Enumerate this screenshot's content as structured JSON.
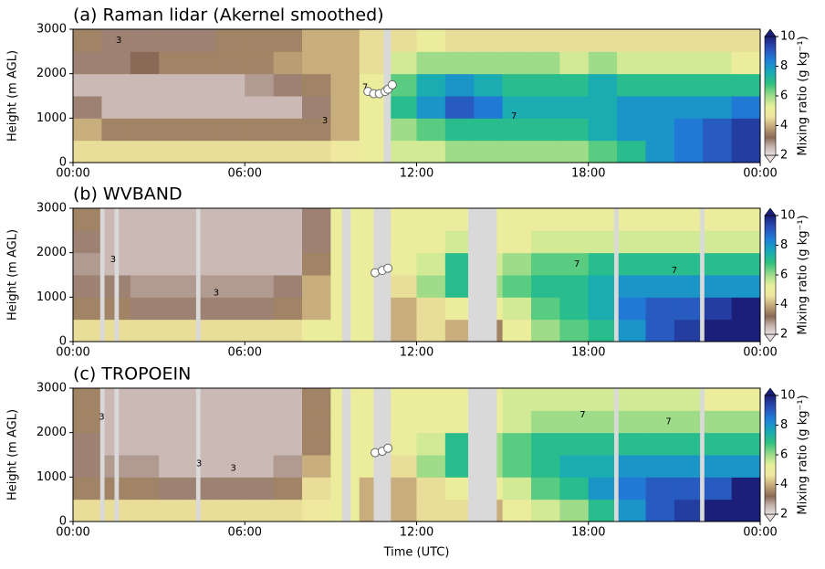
{
  "chart_data": [
    {
      "type": "heatmap",
      "title": "(a) Raman lidar (Akernel smoothed)",
      "ylabel": "Height (m AGL)",
      "colorbar_label": "Mixing ratio (g kg⁻¹)",
      "x": [
        0.5,
        1.5,
        2.5,
        3.5,
        4.5,
        5.5,
        6.5,
        7.5,
        8.5,
        9.5,
        10.5,
        11.5,
        12.5,
        13.5,
        14.5,
        15.5,
        16.5,
        17.5,
        18.5,
        19.5,
        20.5,
        21.5,
        22.5,
        23.5
      ],
      "y": [
        250,
        750,
        1250,
        1750,
        2250,
        2750
      ],
      "values": [
        [
          4.5,
          4.5,
          4.5,
          4.5,
          4.5,
          4.5,
          4.5,
          4.5,
          4.5,
          4.8,
          5,
          5.5,
          5.5,
          6,
          6,
          6,
          6,
          6,
          6.5,
          7,
          8,
          8.5,
          9,
          9.5
        ],
        [
          4,
          3.5,
          3.5,
          3.5,
          3.5,
          3.5,
          3.5,
          3.5,
          3.5,
          4,
          5,
          6,
          6.5,
          7,
          7,
          7,
          7,
          7,
          7.5,
          8,
          8,
          8.5,
          9,
          9.5
        ],
        [
          3,
          2.5,
          2.5,
          2.5,
          2.5,
          2.5,
          2.5,
          2.5,
          3,
          4,
          5,
          7,
          8,
          9,
          8.5,
          7.5,
          7.5,
          7.5,
          7.5,
          8,
          8,
          8,
          8,
          8.5
        ],
        [
          2.5,
          2.5,
          2.5,
          2.5,
          2.5,
          2.5,
          2.8,
          3,
          3.5,
          4,
          5,
          6.5,
          7.5,
          8,
          7.5,
          7,
          7,
          7,
          7.5,
          7,
          7,
          7,
          7,
          7
        ],
        [
          3,
          3,
          3.2,
          3.5,
          3.5,
          3.5,
          3.5,
          3.8,
          4,
          4,
          4.5,
          5.5,
          6,
          6,
          6,
          6,
          6,
          5.5,
          6,
          5.5,
          5.5,
          5.5,
          5.5,
          5
        ],
        [
          3.5,
          3,
          3,
          3,
          3,
          3.5,
          3.5,
          3.5,
          4,
          4,
          4.5,
          4.5,
          5,
          4.5,
          4.5,
          4.5,
          4.5,
          4.5,
          4.5,
          4.5,
          4.5,
          4.5,
          4.5,
          4.5
        ]
      ],
      "gaps": [
        [
          10.85,
          11.1
        ]
      ],
      "gap_color": "#d9d9d9",
      "markers": {
        "x": [
          10.3,
          10.5,
          10.7,
          10.9,
          11.0,
          11.15
        ],
        "y": [
          1600,
          1550,
          1550,
          1600,
          1650,
          1750
        ]
      },
      "contour_labels": [
        {
          "text": "3",
          "x": 1.6,
          "y": 2750
        },
        {
          "text": "3",
          "x": 8.8,
          "y": 950
        },
        {
          "text": "7",
          "x": 10.2,
          "y": 1700
        },
        {
          "text": "7",
          "x": 15.4,
          "y": 1050
        }
      ],
      "xlim": [
        0,
        24
      ],
      "ylim": [
        0,
        3000
      ],
      "xticks": [
        {
          "value": 0,
          "label": "00:00"
        },
        {
          "value": 6,
          "label": "06:00"
        },
        {
          "value": 12,
          "label": "12:00"
        },
        {
          "value": 18,
          "label": "18:00"
        },
        {
          "value": 24,
          "label": "00:00"
        }
      ],
      "yticks": [
        0,
        1000,
        2000,
        3000
      ],
      "clim": [
        2,
        10
      ],
      "cticks": [
        2,
        4,
        6,
        8,
        10
      ]
    },
    {
      "type": "heatmap",
      "title": "(b) WVBAND",
      "ylabel": "Height (m AGL)",
      "colorbar_label": "Mixing ratio (g kg⁻¹)",
      "x": [
        0.5,
        1.5,
        2.5,
        3.5,
        4.5,
        5.5,
        6.5,
        7.5,
        8.5,
        9.5,
        10.5,
        11.5,
        12.5,
        13.5,
        14.5,
        15.5,
        16.5,
        17.5,
        18.5,
        19.5,
        20.5,
        21.5,
        22.5,
        23.5
      ],
      "y": [
        250,
        750,
        1250,
        1750,
        2250,
        2750
      ],
      "values": [
        [
          4.5,
          4.5,
          4.5,
          4.5,
          4.5,
          4.5,
          4.5,
          4.5,
          5,
          5,
          5,
          4,
          4.5,
          4,
          3.5,
          5,
          6,
          6.5,
          7,
          8,
          9,
          9.5,
          10,
          10
        ],
        [
          3.5,
          3.5,
          3,
          3,
          3,
          3,
          3,
          3.5,
          4,
          5,
          5,
          4,
          4.5,
          5,
          5,
          5.5,
          6.5,
          7,
          7.5,
          8.5,
          9,
          9,
          9.5,
          10
        ],
        [
          3,
          3,
          2.8,
          2.8,
          2.8,
          2.8,
          2.8,
          3,
          4,
          5,
          5,
          4.5,
          6,
          7,
          6,
          6.5,
          7,
          7,
          7.5,
          8,
          8,
          8,
          8,
          8
        ],
        [
          2.8,
          2.5,
          2.5,
          2.5,
          2.5,
          2.5,
          2.5,
          2.5,
          3.5,
          5,
          5,
          5,
          5.5,
          7,
          5.5,
          6,
          6.5,
          6.5,
          7,
          7,
          7,
          7,
          7,
          7
        ],
        [
          3,
          2.5,
          2.5,
          2.5,
          2.5,
          2.5,
          2.5,
          2.5,
          3,
          5,
          5,
          5,
          5,
          5.5,
          5,
          5,
          5.5,
          5.5,
          5.5,
          5.5,
          5.5,
          5.5,
          5.5,
          5.5
        ],
        [
          3.5,
          2.5,
          2.5,
          2.5,
          2.5,
          2.5,
          2.5,
          2.5,
          3,
          5,
          5,
          5,
          5,
          5,
          5,
          5,
          5,
          5,
          5,
          5,
          5,
          5,
          5,
          5
        ]
      ],
      "gaps": [
        [
          0.95,
          1.1
        ],
        [
          1.45,
          1.6
        ],
        [
          4.3,
          4.45
        ],
        [
          9.4,
          9.7
        ],
        [
          10.5,
          11.1
        ],
        [
          13.8,
          14.8
        ],
        [
          18.9,
          19.05
        ],
        [
          21.9,
          22.05
        ]
      ],
      "gap_color": "#d9d9d9",
      "markers": {
        "x": [
          10.55,
          10.8,
          11.0
        ],
        "y": [
          1550,
          1600,
          1650
        ]
      },
      "contour_labels": [
        {
          "text": "3",
          "x": 1.4,
          "y": 1850
        },
        {
          "text": "3",
          "x": 5.0,
          "y": 1100
        },
        {
          "text": "7",
          "x": 17.6,
          "y": 1750
        },
        {
          "text": "7",
          "x": 21.0,
          "y": 1600
        }
      ],
      "xlim": [
        0,
        24
      ],
      "ylim": [
        0,
        3000
      ],
      "xticks": [
        {
          "value": 0,
          "label": "00:00"
        },
        {
          "value": 6,
          "label": "06:00"
        },
        {
          "value": 12,
          "label": "12:00"
        },
        {
          "value": 18,
          "label": "18:00"
        },
        {
          "value": 24,
          "label": "00:00"
        }
      ],
      "yticks": [
        0,
        1000,
        2000,
        3000
      ],
      "clim": [
        2,
        10
      ],
      "cticks": [
        2,
        4,
        6,
        8,
        10
      ]
    },
    {
      "type": "heatmap",
      "title": "(c) TROPOEIN",
      "ylabel": "Height (m AGL)",
      "xlabel": "Time (UTC)",
      "colorbar_label": "Mixing ratio (g kg⁻¹)",
      "x": [
        0.5,
        1.5,
        2.5,
        3.5,
        4.5,
        5.5,
        6.5,
        7.5,
        8.5,
        9.5,
        10.5,
        11.5,
        12.5,
        13.5,
        14.5,
        15.5,
        16.5,
        17.5,
        18.5,
        19.5,
        20.5,
        21.5,
        22.5,
        23.5
      ],
      "y": [
        250,
        750,
        1250,
        1750,
        2250,
        2750
      ],
      "values": [
        [
          4.5,
          4.5,
          4.5,
          4.5,
          4.5,
          4.5,
          4.5,
          4.5,
          4.8,
          5,
          4,
          4,
          4.5,
          4.5,
          4,
          5,
          5.5,
          6,
          7,
          8,
          9,
          9.5,
          10,
          10
        ],
        [
          3.5,
          3.5,
          3.5,
          3,
          3,
          3,
          3,
          3.5,
          4.5,
          5,
          4,
          4,
          4.5,
          5,
          5,
          5.5,
          6.5,
          7,
          8,
          8.5,
          9,
          9,
          9,
          10
        ],
        [
          3,
          2.8,
          2.8,
          2.5,
          2.5,
          2.5,
          2.5,
          2.8,
          4,
          5,
          5,
          4.5,
          6,
          7,
          6,
          6.5,
          7,
          7.5,
          7.5,
          8,
          8,
          8,
          8,
          8
        ],
        [
          3,
          2.5,
          2.5,
          2.5,
          2.5,
          2.5,
          2.5,
          2.5,
          3.5,
          5,
          5,
          5,
          5.5,
          7,
          6,
          6.5,
          7,
          7,
          7,
          7,
          7,
          7,
          7,
          7
        ],
        [
          3.5,
          2.5,
          2.5,
          2.5,
          2.5,
          2.5,
          2.5,
          2.5,
          3.5,
          5,
          5,
          5,
          5,
          5,
          5,
          5.5,
          6,
          6,
          6,
          6,
          6,
          6,
          6,
          6
        ],
        [
          3.5,
          2.5,
          2.5,
          2.5,
          2.5,
          2.5,
          2.5,
          2.5,
          3.5,
          5,
          5,
          5,
          5,
          5,
          5,
          5.5,
          5.5,
          5.5,
          5.5,
          5.5,
          5.5,
          5.5,
          5,
          5
        ]
      ],
      "gaps": [
        [
          0.95,
          1.1
        ],
        [
          1.45,
          1.6
        ],
        [
          4.3,
          4.45
        ],
        [
          9.4,
          9.7
        ],
        [
          10.5,
          11.1
        ],
        [
          13.8,
          14.8
        ],
        [
          18.9,
          19.05
        ],
        [
          21.9,
          22.05
        ]
      ],
      "gap_color": "#d9d9d9",
      "markers": {
        "x": [
          10.55,
          10.8,
          11.0
        ],
        "y": [
          1550,
          1580,
          1650
        ]
      },
      "contour_labels": [
        {
          "text": "3",
          "x": 1.0,
          "y": 2350
        },
        {
          "text": "3",
          "x": 4.4,
          "y": 1300
        },
        {
          "text": "3",
          "x": 5.6,
          "y": 1200
        },
        {
          "text": "7",
          "x": 17.8,
          "y": 2400
        },
        {
          "text": "7",
          "x": 20.8,
          "y": 2250
        }
      ],
      "xlim": [
        0,
        24
      ],
      "ylim": [
        0,
        3000
      ],
      "xticks": [
        {
          "value": 0,
          "label": "00:00"
        },
        {
          "value": 6,
          "label": "06:00"
        },
        {
          "value": 12,
          "label": "12:00"
        },
        {
          "value": 18,
          "label": "18:00"
        },
        {
          "value": 24,
          "label": "00:00"
        }
      ],
      "yticks": [
        0,
        1000,
        2000,
        3000
      ],
      "clim": [
        2,
        10
      ],
      "cticks": [
        2,
        4,
        6,
        8,
        10
      ]
    }
  ]
}
